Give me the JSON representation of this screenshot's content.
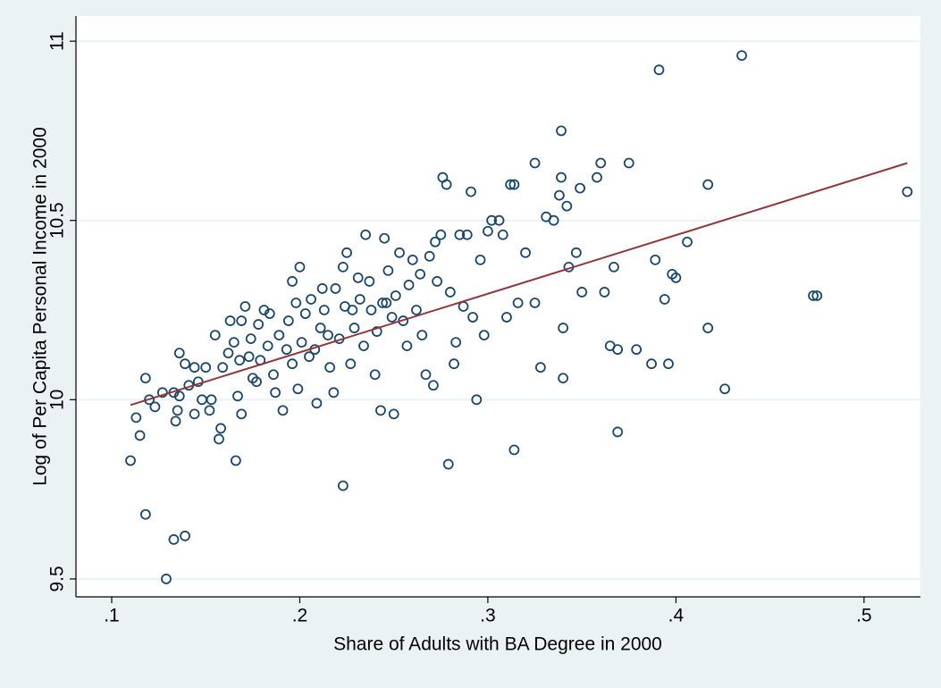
{
  "chart_data": {
    "type": "scatter",
    "xlabel": "Share of Adults with BA Degree in 2000",
    "ylabel": "Log of Per Capita Personal Income in 2000",
    "color": "#1a476f",
    "grid": true,
    "xlim": [
      0.081,
      0.53
    ],
    "ylim": [
      9.45,
      11.07
    ],
    "xticks": [
      {
        "value": 0.1,
        "label": ".1"
      },
      {
        "value": 0.2,
        "label": ".2"
      },
      {
        "value": 0.3,
        "label": ".3"
      },
      {
        "value": 0.4,
        "label": ".4"
      },
      {
        "value": 0.5,
        "label": ".5"
      }
    ],
    "yticks": [
      9.5,
      10,
      10.5,
      11
    ],
    "x": [
      0.11,
      0.113,
      0.115,
      0.118,
      0.118,
      0.12,
      0.123,
      0.127,
      0.129,
      0.133,
      0.133,
      0.134,
      0.135,
      0.136,
      0.136,
      0.139,
      0.139,
      0.141,
      0.144,
      0.144,
      0.146,
      0.148,
      0.15,
      0.152,
      0.153,
      0.155,
      0.157,
      0.158,
      0.159,
      0.162,
      0.163,
      0.165,
      0.166,
      0.167,
      0.168,
      0.169,
      0.169,
      0.171,
      0.173,
      0.174,
      0.175,
      0.177,
      0.178,
      0.179,
      0.181,
      0.183,
      0.184,
      0.186,
      0.187,
      0.189,
      0.191,
      0.193,
      0.194,
      0.196,
      0.196,
      0.198,
      0.199,
      0.2,
      0.201,
      0.203,
      0.205,
      0.206,
      0.208,
      0.209,
      0.211,
      0.212,
      0.213,
      0.215,
      0.216,
      0.218,
      0.219,
      0.223,
      0.221,
      0.223,
      0.224,
      0.225,
      0.227,
      0.228,
      0.229,
      0.231,
      0.232,
      0.234,
      0.235,
      0.237,
      0.238,
      0.24,
      0.241,
      0.243,
      0.244,
      0.245,
      0.246,
      0.247,
      0.249,
      0.25,
      0.251,
      0.253,
      0.255,
      0.257,
      0.258,
      0.26,
      0.262,
      0.264,
      0.265,
      0.267,
      0.269,
      0.271,
      0.272,
      0.273,
      0.275,
      0.276,
      0.278,
      0.279,
      0.28,
      0.282,
      0.283,
      0.285,
      0.287,
      0.289,
      0.291,
      0.292,
      0.294,
      0.296,
      0.298,
      0.3,
      0.302,
      0.306,
      0.308,
      0.31,
      0.312,
      0.314,
      0.314,
      0.316,
      0.32,
      0.325,
      0.325,
      0.328,
      0.331,
      0.335,
      0.338,
      0.339,
      0.339,
      0.34,
      0.34,
      0.342,
      0.343,
      0.347,
      0.349,
      0.35,
      0.358,
      0.36,
      0.362,
      0.365,
      0.367,
      0.369,
      0.369,
      0.375,
      0.379,
      0.387,
      0.389,
      0.394,
      0.396,
      0.398,
      0.4,
      0.406,
      0.391,
      0.435,
      0.417,
      0.417,
      0.426,
      0.473,
      0.475,
      0.523
    ],
    "y": [
      9.83,
      9.95,
      9.9,
      10.06,
      9.68,
      10.0,
      9.98,
      10.02,
      9.5,
      10.02,
      9.61,
      9.94,
      9.97,
      10.13,
      10.01,
      10.1,
      9.62,
      10.04,
      9.96,
      10.09,
      10.05,
      10.0,
      10.09,
      9.97,
      10.0,
      10.18,
      9.89,
      9.92,
      10.09,
      10.13,
      10.22,
      10.16,
      9.83,
      10.01,
      10.11,
      9.96,
      10.22,
      10.26,
      10.12,
      10.17,
      10.06,
      10.05,
      10.21,
      10.11,
      10.25,
      10.15,
      10.24,
      10.07,
      10.02,
      10.18,
      9.97,
      10.14,
      10.22,
      10.1,
      10.33,
      10.27,
      10.03,
      10.37,
      10.16,
      10.24,
      10.12,
      10.28,
      10.14,
      9.99,
      10.2,
      10.31,
      10.25,
      10.18,
      10.09,
      10.02,
      10.31,
      9.76,
      10.17,
      10.37,
      10.26,
      10.41,
      10.1,
      10.25,
      10.2,
      10.34,
      10.28,
      10.15,
      10.46,
      10.33,
      10.25,
      10.07,
      10.19,
      9.97,
      10.27,
      10.45,
      10.27,
      10.36,
      10.23,
      9.96,
      10.29,
      10.41,
      10.22,
      10.15,
      10.32,
      10.39,
      10.25,
      10.35,
      10.18,
      10.07,
      10.4,
      10.04,
      10.44,
      10.33,
      10.46,
      10.62,
      10.6,
      9.82,
      10.3,
      10.1,
      10.16,
      10.46,
      10.26,
      10.46,
      10.58,
      10.23,
      10.0,
      10.39,
      10.18,
      10.47,
      10.5,
      10.5,
      10.46,
      10.23,
      10.6,
      9.86,
      10.6,
      10.27,
      10.41,
      10.27,
      10.66,
      10.09,
      10.51,
      10.5,
      10.57,
      10.62,
      10.75,
      10.2,
      10.06,
      10.54,
      10.37,
      10.41,
      10.59,
      10.3,
      10.62,
      10.66,
      10.3,
      10.15,
      10.37,
      10.14,
      9.91,
      10.66,
      10.14,
      10.1,
      10.39,
      10.28,
      10.1,
      10.35,
      10.34,
      10.44,
      10.92,
      10.96,
      10.6,
      10.2,
      10.03,
      10.29,
      10.29,
      10.58
    ],
    "fit": {
      "x": [
        0.11,
        0.523
      ],
      "values": [
        9.985,
        10.66
      ],
      "color": "#90353b"
    }
  }
}
